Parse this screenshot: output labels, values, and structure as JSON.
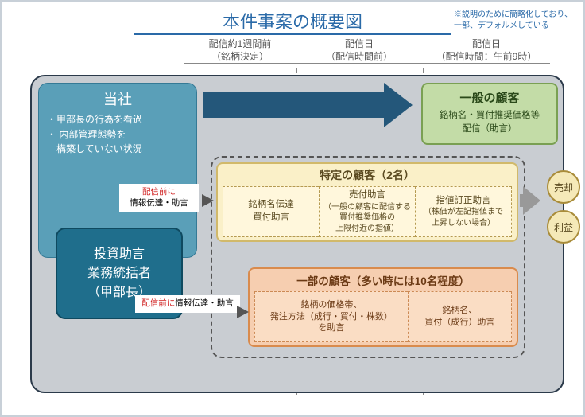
{
  "title": "本件事案の概要図",
  "note_l1": "※説明のために簡略化しており、",
  "note_l2": "一部、デフォルメしている",
  "timeline": {
    "col1_l1": "配信約1週間前",
    "col1_l2": "（銘柄決定）",
    "col2_l1": "配信日",
    "col2_l2": "（配信時間前）",
    "col3_l1": "配信日",
    "col3_l2": "（配信時間：午前9時）"
  },
  "company": {
    "title": "当社",
    "item1": "甲部長の行為を看過",
    "item2_l1": "内部管理態勢を",
    "item2_l2": "構築していない状況"
  },
  "advisor_l1": "投資助言",
  "advisor_l2": "業務統括者",
  "advisor_l3": "（甲部長）",
  "general": {
    "title": "一般の顧客",
    "body_l1": "銘柄名・買付推奨価格等",
    "body_l2": "配信（助言）"
  },
  "specific": {
    "title": "特定の顧客（2名）",
    "b1_l1": "銘柄名伝達",
    "b1_l2": "買付助言",
    "b2hd": "売付助言",
    "b2_l1": "（一般の顧客に配信する",
    "b2_l2": "買付推奨価格の",
    "b2_l3": "上限付近の指値）",
    "b3hd": "指値訂正助言",
    "b3_l1": "（株価が左記指値まで",
    "b3_l2": "上昇しない場合）"
  },
  "some": {
    "title": "一部の顧客（多い時には10名程度）",
    "b1_l1": "銘柄の価格帯、",
    "b1_l2": "発注方法（成行・買付・株数）",
    "b1_l3": "を助言",
    "b2_l1": "銘柄名、",
    "b2_l2": "買付（成行）助言"
  },
  "label1_red": "配信前に",
  "label1_rest": "情報伝達・助言",
  "label2_red": "配信前に",
  "label2_rest": "情報伝達・助言",
  "outcome1": "売却",
  "outcome2": "利益",
  "colors": {
    "title": "#2a6aa8",
    "canvas_bg": "#c9cdd2",
    "company_bg": "#5a9fb8",
    "advisor_bg": "#1f6e8c",
    "arrow": "#24577a",
    "general_bg": "#c3dca7",
    "specific_bg": "#faf0c8",
    "some_bg": "#f6ceb0",
    "circle_bg": "#f5e9b8"
  }
}
